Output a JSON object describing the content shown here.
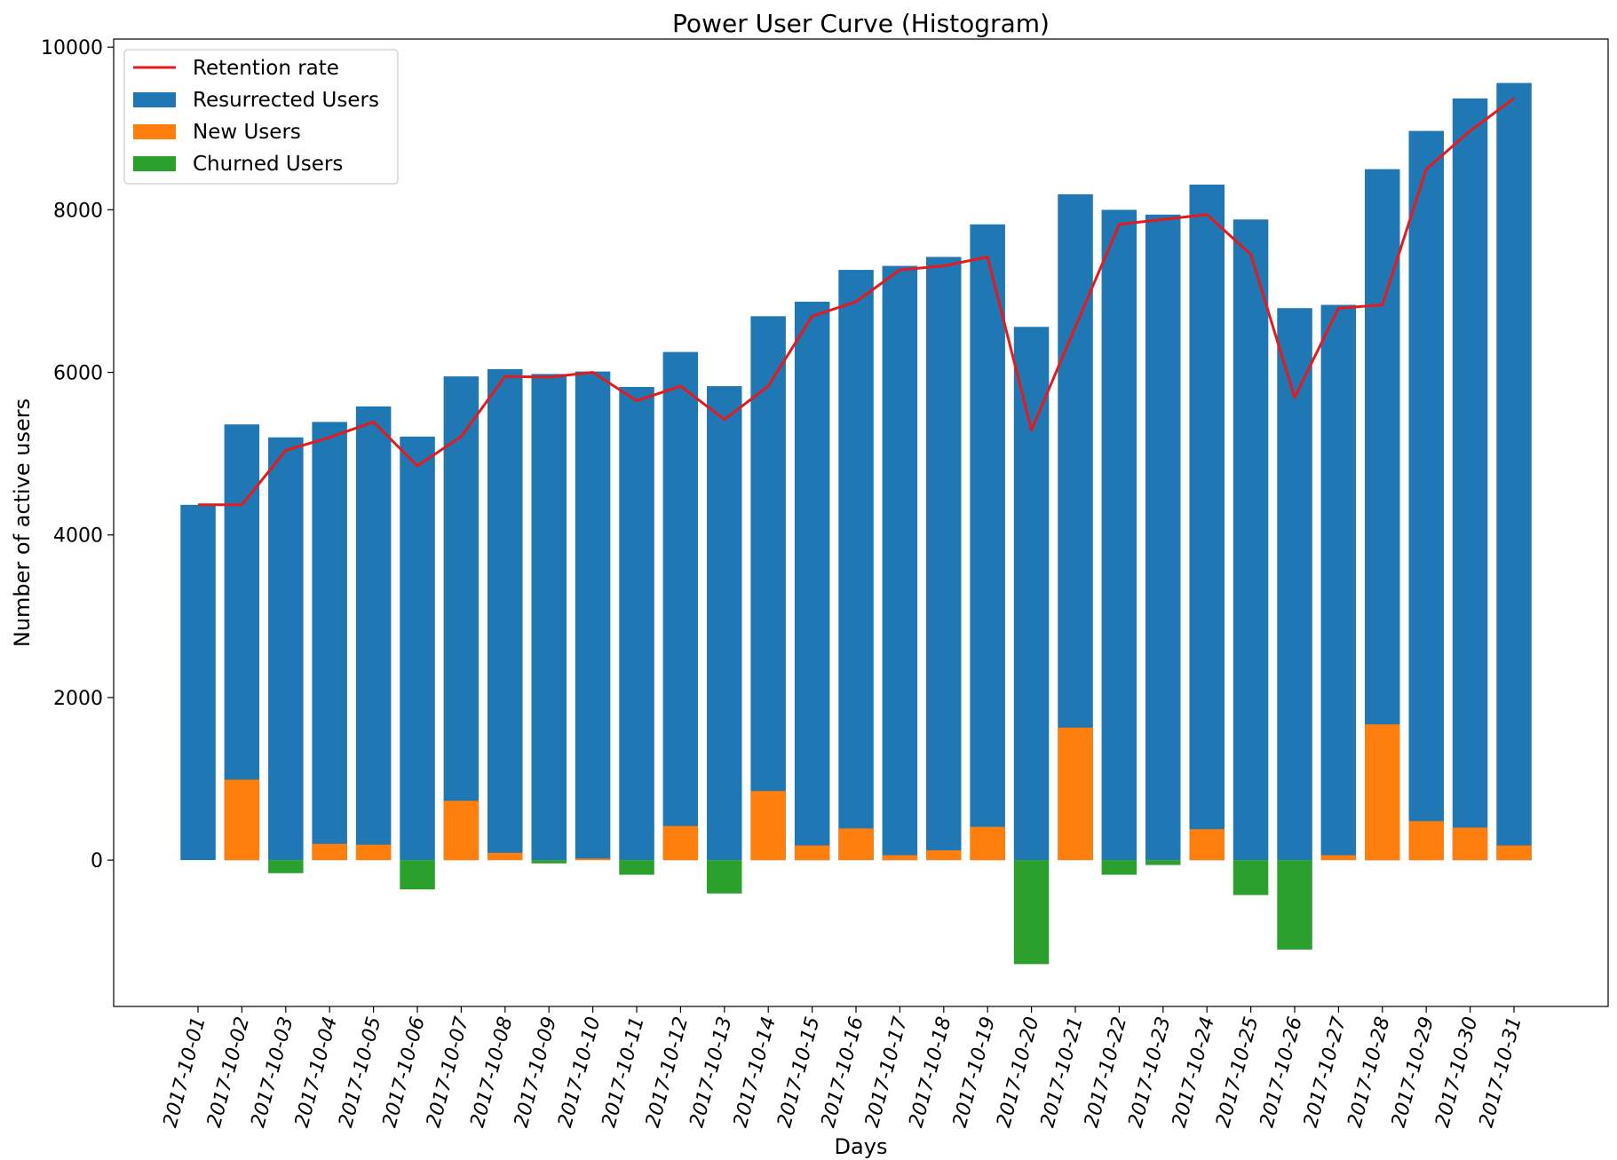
{
  "chart_data": {
    "type": "bar",
    "title": "Power User Curve (Histogram)",
    "xlabel": "Days",
    "ylabel": "Number of active users",
    "ylim": [
      -1800,
      10100
    ],
    "yticks": [
      0,
      2000,
      4000,
      6000,
      8000,
      10000
    ],
    "grid": false,
    "legend_position": "top-left",
    "categories": [
      "2017-10-01",
      "2017-10-02",
      "2017-10-03",
      "2017-10-04",
      "2017-10-05",
      "2017-10-06",
      "2017-10-07",
      "2017-10-08",
      "2017-10-09",
      "2017-10-10",
      "2017-10-11",
      "2017-10-12",
      "2017-10-13",
      "2017-10-14",
      "2017-10-15",
      "2017-10-16",
      "2017-10-17",
      "2017-10-18",
      "2017-10-19",
      "2017-10-20",
      "2017-10-21",
      "2017-10-22",
      "2017-10-23",
      "2017-10-24",
      "2017-10-25",
      "2017-10-26",
      "2017-10-27",
      "2017-10-28",
      "2017-10-29",
      "2017-10-30",
      "2017-10-31"
    ],
    "series": [
      {
        "name": "Resurrected Users",
        "kind": "bar",
        "color": "#1f77b4",
        "values": [
          4370,
          5360,
          5200,
          5390,
          5580,
          5210,
          5950,
          6040,
          5980,
          6010,
          5820,
          6250,
          5830,
          6690,
          6870,
          7260,
          7310,
          7420,
          7820,
          6560,
          8190,
          8000,
          7940,
          8310,
          7880,
          6790,
          6830,
          8500,
          8970,
          9370,
          9560
        ]
      },
      {
        "name": "New Users",
        "kind": "bar",
        "color": "#ff7f0e",
        "values": [
          0,
          990,
          0,
          200,
          190,
          0,
          730,
          90,
          0,
          20,
          0,
          420,
          0,
          850,
          180,
          390,
          60,
          120,
          410,
          0,
          1630,
          0,
          0,
          380,
          0,
          0,
          60,
          1670,
          480,
          400,
          180
        ]
      },
      {
        "name": "Churned Users",
        "kind": "bar",
        "color": "#2ca02c",
        "values": [
          0,
          0,
          -160,
          0,
          0,
          -360,
          0,
          0,
          -40,
          0,
          -180,
          0,
          -410,
          0,
          0,
          0,
          0,
          0,
          0,
          -1280,
          0,
          -180,
          -60,
          0,
          -430,
          -1100,
          0,
          0,
          0,
          0,
          0
        ]
      },
      {
        "name": "Retention rate",
        "kind": "line",
        "color": "#e41a1c",
        "values": [
          4370,
          4370,
          5040,
          5200,
          5390,
          4850,
          5210,
          5950,
          5940,
          6000,
          5650,
          5830,
          5420,
          5830,
          6690,
          6870,
          7260,
          7310,
          7420,
          5290,
          6560,
          7820,
          7880,
          7940,
          7450,
          5690,
          6790,
          6830,
          8500,
          8970,
          9370
        ]
      }
    ]
  }
}
